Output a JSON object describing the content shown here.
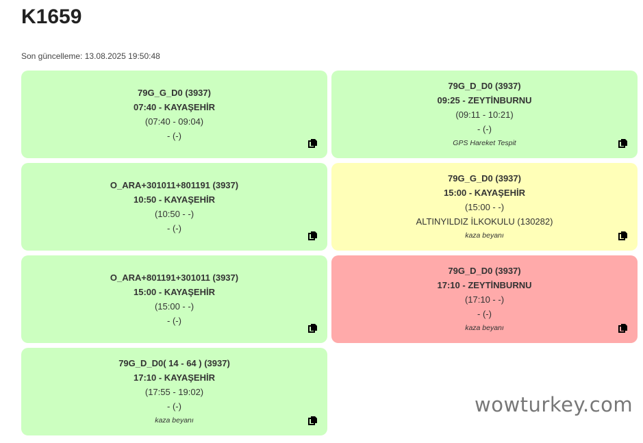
{
  "header": {
    "title": "K1659",
    "last_update": "Son güncelleme: 13.08.2025 19:50:48"
  },
  "colors": {
    "green": "#ccffc0",
    "yellow": "#ffffb8",
    "red": "#ffaaaa"
  },
  "cards": [
    {
      "status": "green",
      "route": "79G_G_D0 (3937)",
      "departure": "07:40 - KAYAŞEHİR",
      "times": "(07:40 - 09:04)",
      "location": "- (-)",
      "note": ""
    },
    {
      "status": "green",
      "route": "79G_D_D0 (3937)",
      "departure": "09:25 - ZEYTİNBURNU",
      "times": "(09:11 - 10:21)",
      "location": "- (-)",
      "note": "GPS Hareket Tespit"
    },
    {
      "status": "green",
      "route": "O_ARA+301011+801191 (3937)",
      "departure": "10:50 - KAYAŞEHİR",
      "times": "(10:50 - -)",
      "location": "- (-)",
      "note": ""
    },
    {
      "status": "yellow",
      "route": "79G_G_D0 (3937)",
      "departure": "15:00 - KAYAŞEHİR",
      "times": "(15:00 - -)",
      "location": "ALTINYILDIZ İLKOKULU (130282)",
      "note": "kaza beyanı"
    },
    {
      "status": "green",
      "route": "O_ARA+801191+301011 (3937)",
      "departure": "15:00 - KAYAŞEHİR",
      "times": "(15:00 - -)",
      "location": "- (-)",
      "note": ""
    },
    {
      "status": "red",
      "route": "79G_D_D0 (3937)",
      "departure": "17:10 - ZEYTİNBURNU",
      "times": "(17:10 - -)",
      "location": "- (-)",
      "note": "kaza beyanı"
    },
    {
      "status": "green",
      "route": "79G_D_D0( 14 - 64 ) (3937)",
      "departure": "17:10 - KAYAŞEHİR",
      "times": "(17:55 - 19:02)",
      "location": "- (-)",
      "note": "kaza beyanı"
    }
  ],
  "copy_icon": "copy-icon",
  "watermark": "wowturkey.com"
}
